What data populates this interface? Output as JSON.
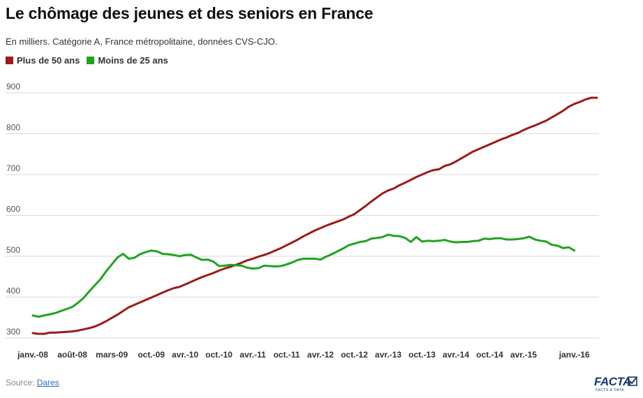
{
  "header": {
    "title": "Le chômage des jeunes et des seniors en France",
    "subtitle": "En milliers. Catégorie A, France métropolitaine, données CVS-CJO."
  },
  "legend": [
    {
      "label": "Plus de 50 ans",
      "color": "#9b1b1b"
    },
    {
      "label": "Moins de 25 ans",
      "color": "#1fa31f"
    }
  ],
  "footer": {
    "source_prefix": "Source: ",
    "source_link": "Dares",
    "logo_text": "FACTA",
    "logo_sub": "FACTS & DATA"
  },
  "chart_data": {
    "type": "line",
    "xlabel": "",
    "ylabel": "",
    "ylim": [
      280,
      920
    ],
    "yticks": [
      300,
      400,
      500,
      600,
      700,
      800,
      900
    ],
    "grid": true,
    "legend_position": "top-left",
    "x_tick_labels": [
      "janv.-08",
      "août-08",
      "mars-09",
      "oct.-09",
      "avr.-10",
      "oct.-10",
      "avr.-11",
      "oct.-11",
      "avr.-12",
      "oct.-12",
      "avr.-13",
      "oct.-13",
      "avr.-14",
      "oct.-14",
      "avr.-15",
      "janv.-16"
    ],
    "x_tick_month_index": [
      0,
      7,
      14,
      21,
      27,
      33,
      39,
      45,
      51,
      57,
      63,
      69,
      75,
      81,
      87,
      96
    ],
    "x_range_months": [
      0,
      96
    ],
    "series": [
      {
        "name": "Plus de 50 ans",
        "color": "#9b1b1b",
        "points": [
          [
            0,
            312
          ],
          [
            1,
            310
          ],
          [
            2,
            310
          ],
          [
            3,
            313
          ],
          [
            4,
            313
          ],
          [
            5,
            314
          ],
          [
            6,
            315
          ],
          [
            7,
            316
          ],
          [
            8,
            318
          ],
          [
            9,
            321
          ],
          [
            10,
            324
          ],
          [
            11,
            328
          ],
          [
            12,
            334
          ],
          [
            13,
            341
          ],
          [
            14,
            349
          ],
          [
            15,
            357
          ],
          [
            16,
            366
          ],
          [
            17,
            375
          ],
          [
            18,
            381
          ],
          [
            19,
            387
          ],
          [
            20,
            393
          ],
          [
            21,
            399
          ],
          [
            22,
            405
          ],
          [
            23,
            411
          ],
          [
            24,
            417
          ],
          [
            25,
            422
          ],
          [
            26,
            425
          ],
          [
            27,
            431
          ],
          [
            28,
            437
          ],
          [
            29,
            443
          ],
          [
            30,
            449
          ],
          [
            31,
            454
          ],
          [
            32,
            459
          ],
          [
            33,
            465
          ],
          [
            34,
            470
          ],
          [
            35,
            474
          ],
          [
            36,
            479
          ],
          [
            37,
            484
          ],
          [
            38,
            490
          ],
          [
            39,
            494
          ],
          [
            40,
            499
          ],
          [
            41,
            503
          ],
          [
            42,
            508
          ],
          [
            43,
            514
          ],
          [
            44,
            520
          ],
          [
            45,
            527
          ],
          [
            46,
            534
          ],
          [
            47,
            541
          ],
          [
            48,
            549
          ],
          [
            49,
            556
          ],
          [
            50,
            563
          ],
          [
            51,
            569
          ],
          [
            52,
            575
          ],
          [
            53,
            580
          ],
          [
            54,
            585
          ],
          [
            55,
            590
          ],
          [
            56,
            597
          ],
          [
            57,
            603
          ],
          [
            58,
            613
          ],
          [
            59,
            623
          ],
          [
            60,
            634
          ],
          [
            61,
            644
          ],
          [
            62,
            654
          ],
          [
            63,
            661
          ],
          [
            64,
            666
          ],
          [
            65,
            674
          ],
          [
            66,
            680
          ],
          [
            67,
            687
          ],
          [
            68,
            694
          ],
          [
            69,
            700
          ],
          [
            70,
            706
          ],
          [
            71,
            711
          ],
          [
            72,
            713
          ],
          [
            73,
            721
          ],
          [
            74,
            725
          ],
          [
            75,
            732
          ],
          [
            76,
            740
          ],
          [
            77,
            748
          ],
          [
            78,
            756
          ],
          [
            79,
            762
          ],
          [
            80,
            768
          ],
          [
            81,
            774
          ],
          [
            82,
            780
          ],
          [
            83,
            786
          ],
          [
            84,
            791
          ],
          [
            85,
            797
          ],
          [
            86,
            802
          ],
          [
            87,
            809
          ],
          [
            88,
            815
          ],
          [
            89,
            820
          ],
          [
            90,
            826
          ],
          [
            91,
            832
          ],
          [
            92,
            840
          ],
          [
            93,
            848
          ],
          [
            94,
            856
          ],
          [
            95,
            866
          ],
          [
            96,
            873
          ],
          [
            97,
            878
          ],
          [
            98,
            884
          ],
          [
            99,
            888
          ],
          [
            100,
            888
          ]
        ]
      },
      {
        "name": "Moins de 25 ans",
        "color": "#1fa31f",
        "points": [
          [
            0,
            355
          ],
          [
            1,
            352
          ],
          [
            2,
            355
          ],
          [
            3,
            358
          ],
          [
            4,
            361
          ],
          [
            5,
            366
          ],
          [
            6,
            371
          ],
          [
            7,
            376
          ],
          [
            8,
            386
          ],
          [
            9,
            398
          ],
          [
            10,
            414
          ],
          [
            11,
            429
          ],
          [
            12,
            444
          ],
          [
            13,
            463
          ],
          [
            14,
            480
          ],
          [
            15,
            497
          ],
          [
            16,
            506
          ],
          [
            17,
            494
          ],
          [
            18,
            496
          ],
          [
            19,
            505
          ],
          [
            20,
            510
          ],
          [
            21,
            514
          ],
          [
            22,
            512
          ],
          [
            23,
            506
          ],
          [
            24,
            505
          ],
          [
            25,
            503
          ],
          [
            26,
            500
          ],
          [
            27,
            503
          ],
          [
            28,
            504
          ],
          [
            29,
            497
          ],
          [
            30,
            491
          ],
          [
            31,
            492
          ],
          [
            32,
            487
          ],
          [
            33,
            476
          ],
          [
            34,
            477
          ],
          [
            35,
            479
          ],
          [
            36,
            478
          ],
          [
            37,
            477
          ],
          [
            38,
            472
          ],
          [
            39,
            470
          ],
          [
            40,
            471
          ],
          [
            41,
            477
          ],
          [
            42,
            476
          ],
          [
            43,
            475
          ],
          [
            44,
            476
          ],
          [
            45,
            480
          ],
          [
            46,
            485
          ],
          [
            47,
            491
          ],
          [
            48,
            494
          ],
          [
            49,
            494
          ],
          [
            50,
            494
          ],
          [
            51,
            492
          ],
          [
            52,
            499
          ],
          [
            53,
            505
          ],
          [
            54,
            512
          ],
          [
            55,
            519
          ],
          [
            56,
            527
          ],
          [
            57,
            531
          ],
          [
            58,
            535
          ],
          [
            59,
            537
          ],
          [
            60,
            543
          ],
          [
            61,
            545
          ],
          [
            62,
            547
          ],
          [
            63,
            553
          ],
          [
            64,
            550
          ],
          [
            65,
            549
          ],
          [
            66,
            545
          ],
          [
            67,
            535
          ],
          [
            68,
            547
          ],
          [
            69,
            536
          ],
          [
            70,
            538
          ],
          [
            71,
            537
          ],
          [
            72,
            538
          ],
          [
            73,
            540
          ],
          [
            74,
            536
          ],
          [
            75,
            534
          ],
          [
            76,
            535
          ],
          [
            77,
            535
          ],
          [
            78,
            537
          ],
          [
            79,
            538
          ],
          [
            80,
            543
          ],
          [
            81,
            542
          ],
          [
            82,
            544
          ],
          [
            83,
            544
          ],
          [
            84,
            541
          ],
          [
            85,
            541
          ],
          [
            86,
            542
          ],
          [
            87,
            544
          ],
          [
            88,
            548
          ],
          [
            89,
            541
          ],
          [
            90,
            538
          ],
          [
            91,
            536
          ],
          [
            92,
            528
          ],
          [
            93,
            526
          ],
          [
            94,
            520
          ],
          [
            95,
            522
          ],
          [
            96,
            514
          ]
        ]
      }
    ]
  }
}
